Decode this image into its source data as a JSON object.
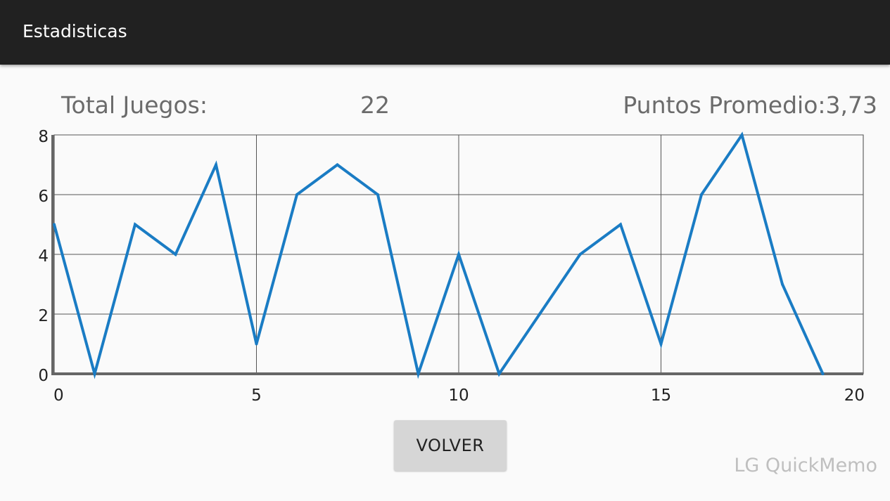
{
  "app_bar": {
    "title": "Estadisticas"
  },
  "stats": {
    "total_label": "Total Juegos:",
    "total_value": "22",
    "average_label": "Puntos Promedio:",
    "average_value": "3,73"
  },
  "chart_data": {
    "type": "line",
    "title": "",
    "xlabel": "",
    "ylabel": "",
    "xlim": [
      0,
      20
    ],
    "ylim": [
      0,
      8
    ],
    "x_ticks": [
      "0",
      "5",
      "10",
      "15",
      "20"
    ],
    "y_ticks": [
      "0",
      "2",
      "4",
      "6",
      "8"
    ],
    "grid": true,
    "series": [
      {
        "x": [
          0,
          1,
          2,
          3,
          4,
          5,
          6,
          7,
          8,
          9,
          10,
          11,
          12,
          13,
          14,
          15,
          16,
          17,
          18,
          19
        ],
        "values": [
          5,
          0,
          5,
          4,
          7,
          1,
          6,
          7,
          6,
          0,
          4,
          0,
          2,
          4,
          5,
          1,
          6,
          8,
          3,
          0
        ],
        "color": "#1a7cc4"
      }
    ]
  },
  "actions": {
    "volver_label": "VOLVER"
  },
  "watermark": "LG QuickMemo"
}
